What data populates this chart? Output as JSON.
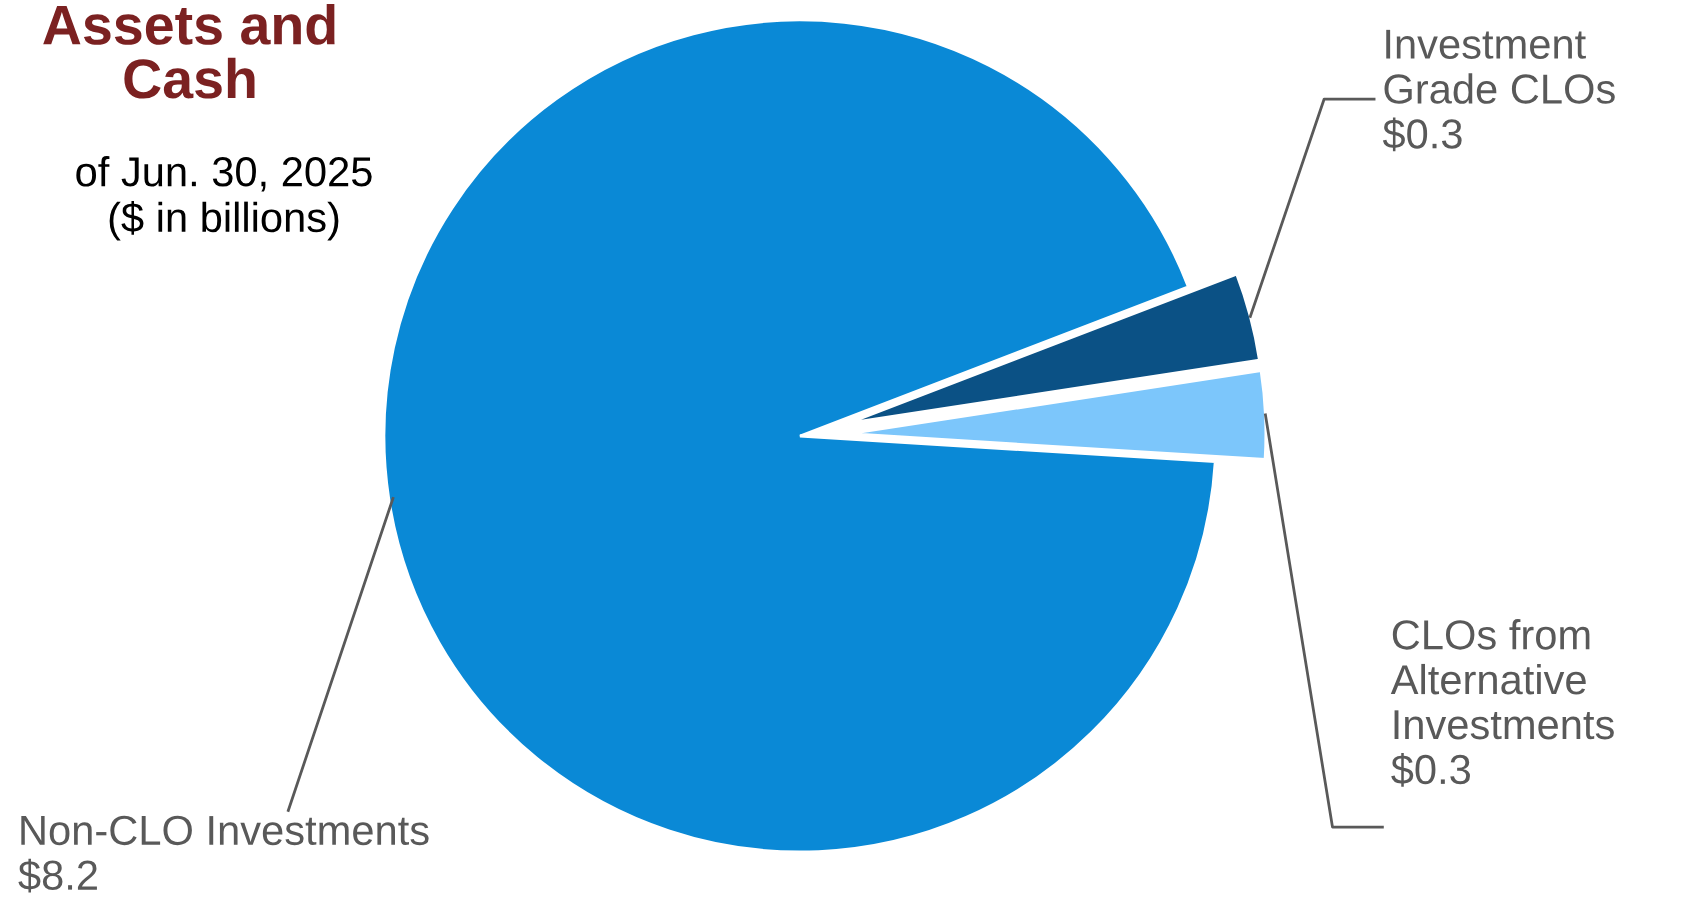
{
  "chart_data": {
    "type": "pie",
    "title": "Assets and\nCash",
    "subtitle": "of Jun. 30, 2025\n($ in billions)",
    "categories": [
      "Investment\nGrade CLOs",
      "CLOs from\nAlternative\nInvestments",
      "Non-CLO Investments"
    ],
    "values": [
      0.3,
      0.3,
      8.2
    ],
    "colors": [
      "#0b5185",
      "#7cc6fb",
      "#0a89d6"
    ],
    "value_labels": [
      "$0.3",
      "$0.3",
      "$8.2"
    ]
  }
}
